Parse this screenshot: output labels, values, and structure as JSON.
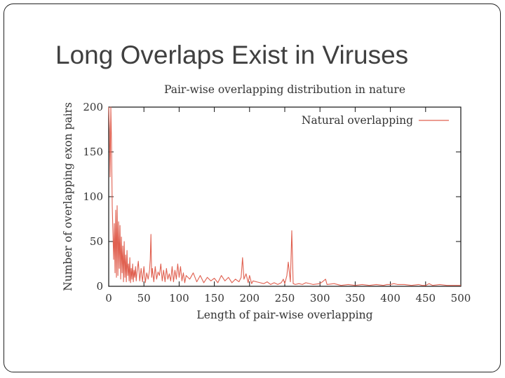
{
  "slide": {
    "title": "Long Overlaps Exist in Viruses"
  },
  "chart_data": {
    "type": "line",
    "title": "Pair-wise overlapping distribution in nature",
    "xlabel": "Length of pair-wise overlapping",
    "ylabel": "Number of overlapping exon pairs",
    "xlim": [
      0,
      500
    ],
    "ylim": [
      0,
      200
    ],
    "xticks": [
      0,
      50,
      100,
      150,
      200,
      250,
      300,
      350,
      400,
      450,
      500
    ],
    "yticks": [
      0,
      50,
      100,
      150,
      200
    ],
    "legend": {
      "label": "Natural overlapping",
      "position": "top-right"
    },
    "colors": {
      "series": "#e06050",
      "axis": "#111111"
    },
    "series": [
      {
        "name": "Natural overlapping",
        "x": [
          0,
          1,
          2,
          3,
          4,
          5,
          6,
          7,
          8,
          9,
          10,
          11,
          12,
          13,
          14,
          15,
          16,
          17,
          18,
          19,
          20,
          21,
          22,
          23,
          24,
          25,
          26,
          27,
          28,
          29,
          30,
          31,
          32,
          33,
          34,
          35,
          36,
          37,
          38,
          39,
          40,
          42,
          44,
          46,
          48,
          50,
          52,
          54,
          56,
          58,
          59,
          60,
          61,
          62,
          64,
          66,
          68,
          70,
          72,
          74,
          76,
          78,
          80,
          82,
          84,
          86,
          88,
          90,
          92,
          94,
          96,
          98,
          100,
          102,
          104,
          106,
          108,
          110,
          115,
          120,
          125,
          130,
          135,
          140,
          145,
          150,
          155,
          160,
          165,
          170,
          175,
          180,
          185,
          188,
          190,
          192,
          195,
          198,
          200,
          203,
          205,
          210,
          215,
          220,
          225,
          230,
          235,
          240,
          245,
          248,
          250,
          253,
          255,
          258,
          260,
          262,
          265,
          270,
          275,
          280,
          290,
          300,
          305,
          308,
          310,
          320,
          330,
          340,
          350,
          360,
          370,
          380,
          390,
          395,
          400,
          405,
          410,
          420,
          430,
          440,
          445,
          450,
          455,
          460,
          470,
          480,
          490,
          500
        ],
        "y": [
          200,
          175,
          122,
          200,
          160,
          90,
          60,
          30,
          70,
          15,
          85,
          10,
          90,
          12,
          72,
          20,
          68,
          8,
          55,
          15,
          45,
          5,
          50,
          10,
          35,
          5,
          40,
          12,
          25,
          6,
          32,
          4,
          20,
          8,
          25,
          5,
          18,
          10,
          22,
          6,
          15,
          28,
          6,
          20,
          5,
          22,
          4,
          15,
          8,
          18,
          30,
          58,
          10,
          20,
          5,
          22,
          8,
          16,
          12,
          25,
          6,
          18,
          5,
          20,
          8,
          14,
          6,
          22,
          5,
          18,
          8,
          25,
          10,
          22,
          6,
          15,
          4,
          12,
          8,
          15,
          5,
          12,
          4,
          10,
          6,
          9,
          4,
          12,
          6,
          10,
          4,
          8,
          5,
          10,
          32,
          8,
          14,
          4,
          12,
          3,
          6,
          5,
          4,
          3,
          5,
          2,
          4,
          2,
          4,
          8,
          3,
          12,
          27,
          5,
          62,
          3,
          2,
          3,
          2,
          4,
          2,
          3,
          6,
          8,
          2,
          3,
          1,
          2,
          1,
          2,
          1,
          2,
          1,
          2,
          2,
          3,
          2,
          2,
          1,
          2,
          1,
          1,
          3,
          1,
          2,
          1,
          1,
          1
        ]
      }
    ]
  }
}
